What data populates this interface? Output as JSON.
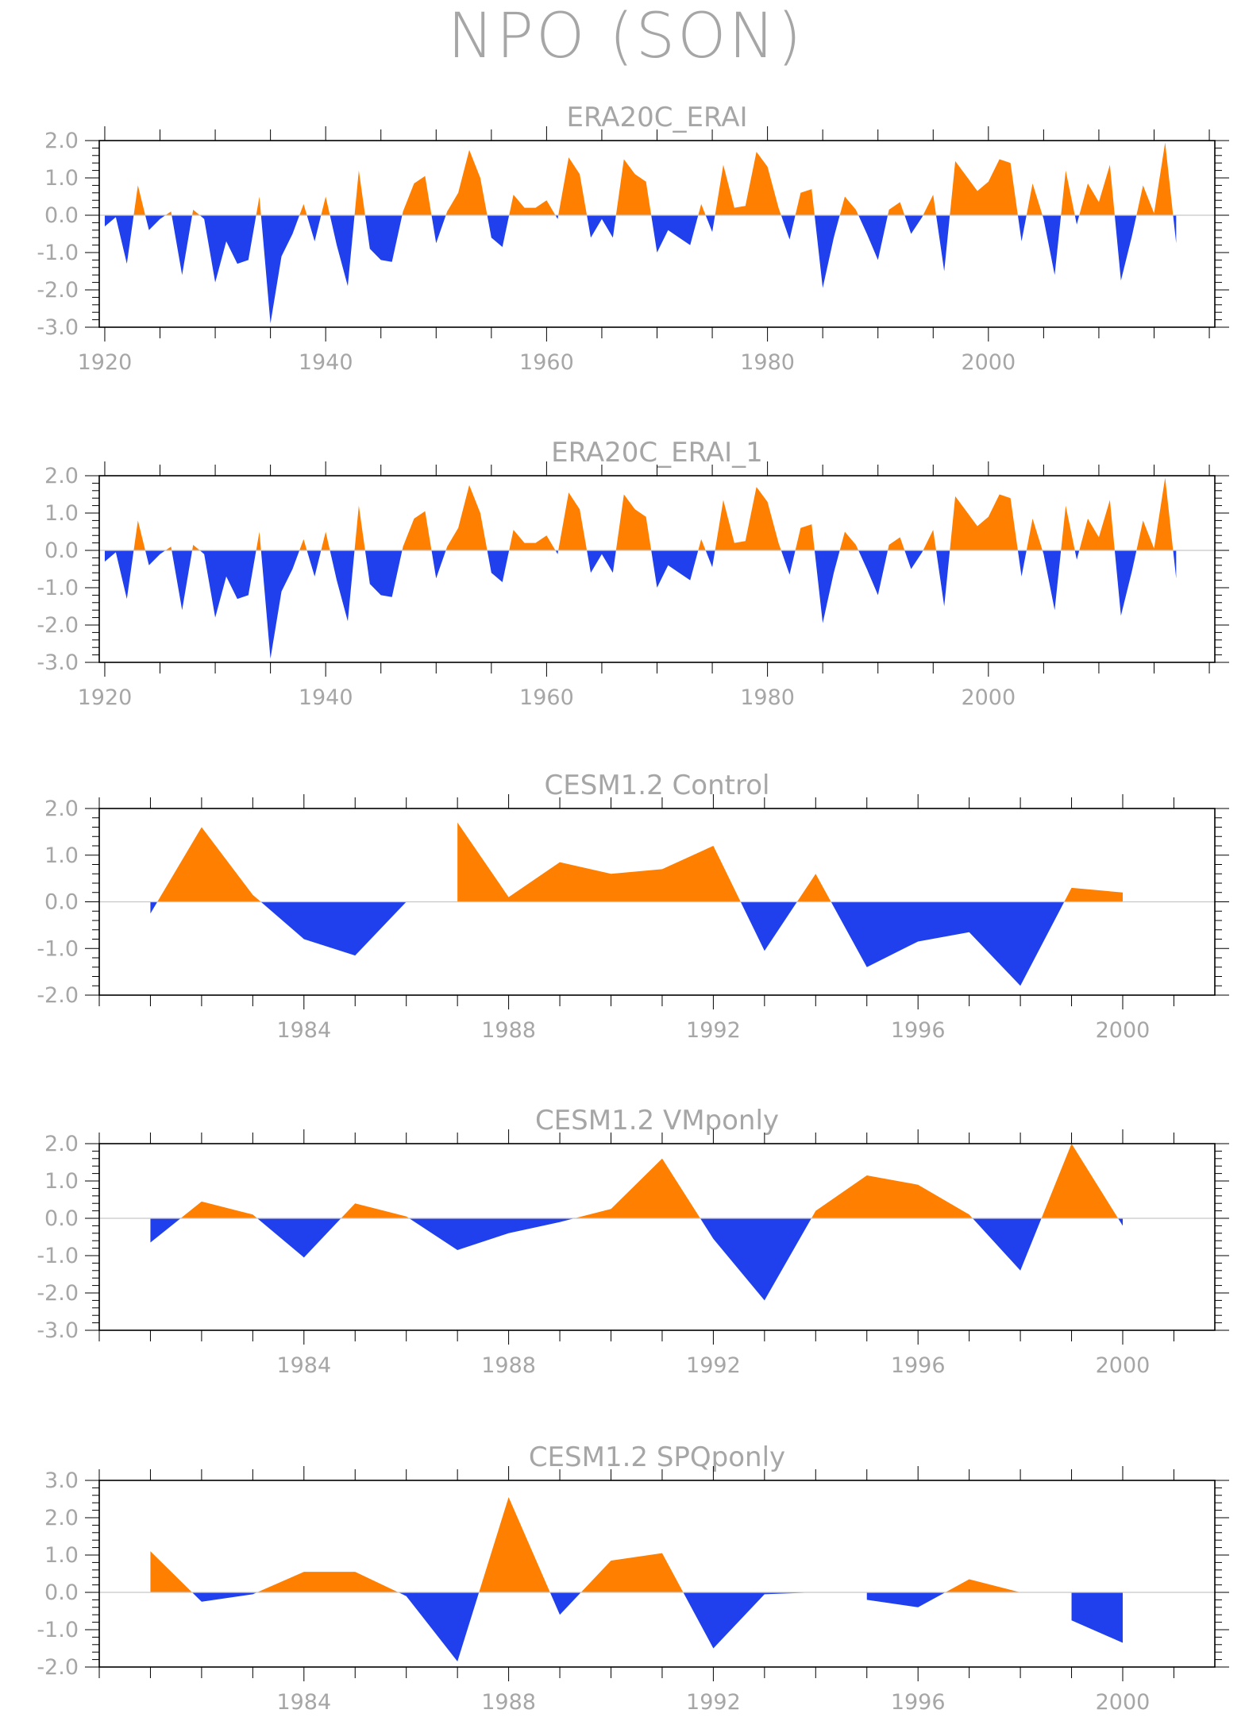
{
  "figure_title": "NPO (SON)",
  "colors": {
    "positive": "#ff7f00",
    "negative": "#2040ee",
    "text": "#a6a6a6",
    "axis": "#000000"
  },
  "chart_data": [
    {
      "type": "area",
      "title": "ERA20C_ERAI",
      "xlabel": "",
      "ylabel": "",
      "xlim": [
        1919.5,
        2020.5
      ],
      "ylim": [
        -3.0,
        2.0
      ],
      "xticks": [
        1920,
        1940,
        1960,
        1980,
        2000
      ],
      "yticks": [
        -3.0,
        -2.0,
        -1.0,
        0.0,
        1.0,
        2.0
      ],
      "ytick_labels": [
        "-3.0",
        "-2.0",
        "-1.0",
        "0.0",
        "1.0",
        "2.0"
      ],
      "x_start": 1920,
      "values": [
        -0.3,
        -0.05,
        -1.3,
        0.8,
        -0.4,
        -0.1,
        0.1,
        -1.6,
        0.15,
        -0.1,
        -1.8,
        -0.7,
        -1.3,
        -1.2,
        0.5,
        -2.9,
        -1.1,
        -0.5,
        0.3,
        -0.7,
        0.5,
        -0.8,
        -1.9,
        1.2,
        -0.9,
        -1.2,
        -1.25,
        0.1,
        0.85,
        1.05,
        -0.75,
        0.1,
        0.6,
        1.75,
        1.0,
        -0.6,
        -0.85,
        0.55,
        0.2,
        0.2,
        0.4,
        -0.1,
        1.55,
        1.1,
        -0.6,
        -0.1,
        -0.6,
        1.5,
        1.1,
        0.9,
        -1.0,
        -0.4,
        -0.6,
        -0.8,
        0.3,
        -0.45,
        1.35,
        0.2,
        0.25,
        1.7,
        1.3,
        0.2,
        -0.65,
        0.6,
        0.7,
        -1.95,
        -0.6,
        0.5,
        0.15,
        -0.5,
        -1.2,
        0.15,
        0.35,
        -0.5,
        -0.05,
        0.55,
        -1.5,
        1.45,
        1.05,
        0.65,
        0.9,
        1.5,
        1.4,
        -0.7,
        0.85,
        -0.1,
        -1.6,
        1.2,
        -0.25,
        0.85,
        0.35,
        1.35,
        -1.75,
        -0.55,
        0.8,
        0.05,
        1.95,
        -0.75
      ]
    },
    {
      "type": "area",
      "title": "ERA20C_ERAI_1",
      "xlabel": "",
      "ylabel": "",
      "xlim": [
        1919.5,
        2020.5
      ],
      "ylim": [
        -3.0,
        2.0
      ],
      "xticks": [
        1920,
        1940,
        1960,
        1980,
        2000
      ],
      "yticks": [
        -3.0,
        -2.0,
        -1.0,
        0.0,
        1.0,
        2.0
      ],
      "ytick_labels": [
        "-3.0",
        "-2.0",
        "-1.0",
        "0.0",
        "1.0",
        "2.0"
      ],
      "x_start": 1920,
      "values": [
        -0.3,
        -0.05,
        -1.3,
        0.8,
        -0.4,
        -0.1,
        0.1,
        -1.6,
        0.15,
        -0.1,
        -1.8,
        -0.7,
        -1.3,
        -1.2,
        0.5,
        -2.9,
        -1.1,
        -0.5,
        0.3,
        -0.7,
        0.5,
        -0.8,
        -1.9,
        1.2,
        -0.9,
        -1.2,
        -1.25,
        0.1,
        0.85,
        1.05,
        -0.75,
        0.1,
        0.6,
        1.75,
        1.0,
        -0.6,
        -0.85,
        0.55,
        0.2,
        0.2,
        0.4,
        -0.1,
        1.55,
        1.1,
        -0.6,
        -0.1,
        -0.6,
        1.5,
        1.1,
        0.9,
        -1.0,
        -0.4,
        -0.6,
        -0.8,
        0.3,
        -0.45,
        1.35,
        0.2,
        0.25,
        1.7,
        1.3,
        0.2,
        -0.65,
        0.6,
        0.7,
        -1.95,
        -0.6,
        0.5,
        0.15,
        -0.5,
        -1.2,
        0.15,
        0.35,
        -0.5,
        -0.05,
        0.55,
        -1.5,
        1.45,
        1.05,
        0.65,
        0.9,
        1.5,
        1.4,
        -0.7,
        0.85,
        -0.1,
        -1.6,
        1.2,
        -0.25,
        0.85,
        0.35,
        1.35,
        -1.75,
        -0.55,
        0.8,
        0.05,
        1.95,
        -0.75
      ]
    },
    {
      "type": "area",
      "title": "CESM1.2 Control",
      "xlabel": "",
      "ylabel": "",
      "xlim": [
        1980,
        2001.8
      ],
      "ylim": [
        -2.0,
        2.0
      ],
      "xticks": [
        1984,
        1988,
        1992,
        1996,
        2000
      ],
      "yticks": [
        -2.0,
        -1.0,
        0.0,
        1.0,
        2.0
      ],
      "ytick_labels": [
        "-2.0",
        "-1.0",
        "0.0",
        "1.0",
        "2.0"
      ],
      "x_start": 1981,
      "values": [
        -0.25,
        1.6,
        0.15,
        -0.8,
        -1.15,
        0.0,
        1.7,
        0.1,
        0.85,
        0.6,
        0.7,
        1.2,
        -1.05,
        0.6,
        -1.4,
        -0.85,
        -0.65,
        -1.8,
        0.3,
        0.2
      ]
    },
    {
      "type": "area",
      "title": "CESM1.2 VMponly",
      "xlabel": "",
      "ylabel": "",
      "xlim": [
        1980,
        2001.8
      ],
      "ylim": [
        -3.0,
        2.0
      ],
      "xticks": [
        1984,
        1988,
        1992,
        1996,
        2000
      ],
      "yticks": [
        -3.0,
        -2.0,
        -1.0,
        0.0,
        1.0,
        2.0
      ],
      "ytick_labels": [
        "-3.0",
        "-2.0",
        "-1.0",
        "0.0",
        "1.0",
        "2.0"
      ],
      "x_start": 1981,
      "values": [
        -0.65,
        0.45,
        0.1,
        -1.05,
        0.4,
        0.05,
        -0.85,
        -0.4,
        -0.1,
        0.25,
        1.6,
        -0.55,
        -2.2,
        0.2,
        1.15,
        0.9,
        0.1,
        -1.4,
        2.0,
        -0.2
      ]
    },
    {
      "type": "area",
      "title": "CESM1.2 SPQponly",
      "xlabel": "",
      "ylabel": "",
      "xlim": [
        1980,
        2001.8
      ],
      "ylim": [
        -2.0,
        3.0
      ],
      "xticks": [
        1984,
        1988,
        1992,
        1996,
        2000
      ],
      "yticks": [
        -2.0,
        -1.0,
        0.0,
        1.0,
        2.0,
        3.0
      ],
      "ytick_labels": [
        "-2.0",
        "-1.0",
        "0.0",
        "1.0",
        "2.0",
        "3.0"
      ],
      "x_start": 1981,
      "values": [
        1.1,
        -0.25,
        -0.05,
        0.55,
        0.55,
        -0.1,
        -1.85,
        2.55,
        -0.6,
        0.85,
        1.05,
        -1.5,
        -0.05,
        0.0,
        -0.2,
        -0.4,
        0.35,
        0.0,
        -0.75,
        -1.35
      ]
    }
  ]
}
